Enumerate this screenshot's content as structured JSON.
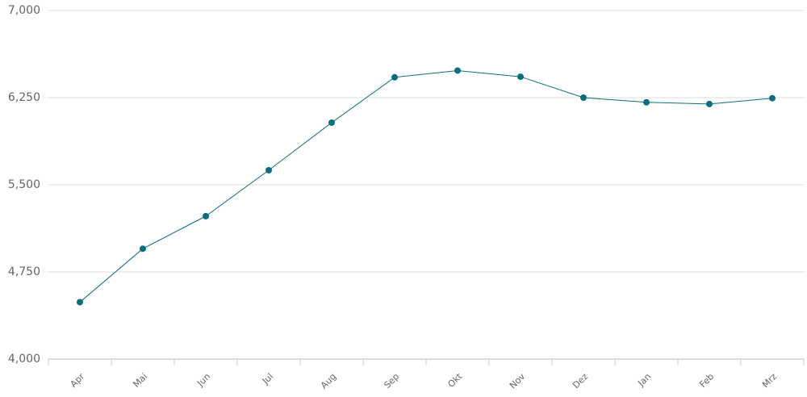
{
  "chart_data": {
    "type": "line",
    "categories": [
      "Apr",
      "Mai",
      "Jun",
      "Jul",
      "Aug",
      "Sep",
      "Okt",
      "Nov",
      "Dez",
      "Jan",
      "Feb",
      "Mrz"
    ],
    "series": [
      {
        "color": "#0b6e7d",
        "values": [
          4490,
          4950,
          5230,
          5625,
          6035,
          6425,
          6483,
          6430,
          6250,
          6210,
          6195,
          6245
        ]
      }
    ],
    "ylim": [
      4000,
      7000
    ],
    "yticks": [
      {
        "value": 4000,
        "label": "4,000"
      },
      {
        "value": 4750,
        "label": "4,750"
      },
      {
        "value": 5500,
        "label": "5,500"
      },
      {
        "value": 6250,
        "label": "6,250"
      },
      {
        "value": 7000,
        "label": "7,000"
      }
    ],
    "grid": true
  }
}
